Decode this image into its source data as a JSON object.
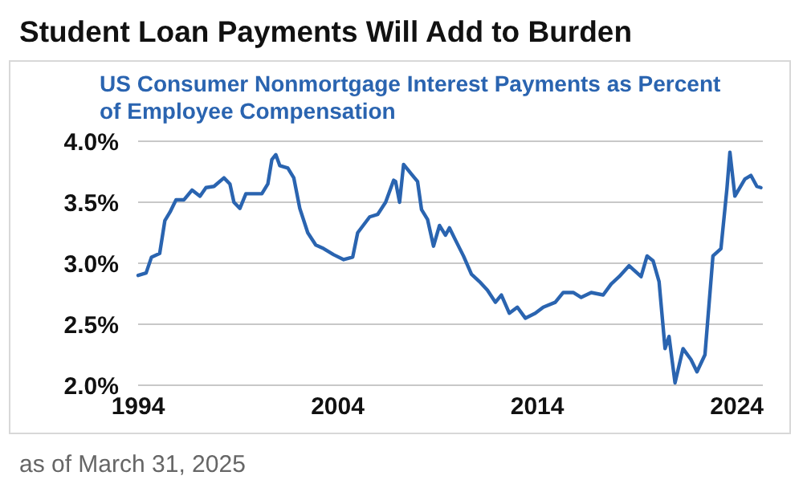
{
  "chart_data": {
    "type": "line",
    "title": "Student Loan Payments Will Add to Burden",
    "subtitle": "US Consumer Nonmortgage Interest Payments as Percent of Employee Compensation",
    "annotations": [
      "as of March 31, 2025"
    ],
    "x": [
      1994.0,
      1994.4,
      1994.67,
      1995.08,
      1995.34,
      1995.6,
      1995.9,
      1996.3,
      1996.7,
      1997.1,
      1997.4,
      1997.8,
      1998.3,
      1998.6,
      1998.8,
      1999.1,
      1999.4,
      2000.2,
      2000.5,
      2000.7,
      2000.9,
      2001.1,
      2001.5,
      2001.8,
      2002.1,
      2002.5,
      2002.9,
      2003.3,
      2003.8,
      2004.3,
      2004.75,
      2005.0,
      2005.6,
      2006.0,
      2006.4,
      2006.8,
      2006.9,
      2007.1,
      2007.3,
      2007.7,
      2008.0,
      2008.2,
      2008.5,
      2008.8,
      2009.1,
      2009.4,
      2009.6,
      2009.9,
      2010.3,
      2010.7,
      2011.1,
      2011.5,
      2011.9,
      2012.2,
      2012.6,
      2013.0,
      2013.4,
      2013.9,
      2014.3,
      2014.9,
      2015.3,
      2015.8,
      2016.2,
      2016.7,
      2017.3,
      2017.7,
      2018.1,
      2018.6,
      2019.2,
      2019.5,
      2019.8,
      2020.1,
      2020.4,
      2020.6,
      2020.9,
      2021.3,
      2021.7,
      2022.0,
      2022.4,
      2022.8,
      2023.2,
      2023.5,
      2023.65,
      2023.9,
      2024.4,
      2024.7,
      2025.0,
      2025.2
    ],
    "series": [
      {
        "color": "#2a64b0",
        "values": [
          2.9,
          2.92,
          3.05,
          3.08,
          3.35,
          3.42,
          3.52,
          3.52,
          3.6,
          3.55,
          3.62,
          3.63,
          3.7,
          3.65,
          3.5,
          3.45,
          3.57,
          3.57,
          3.65,
          3.85,
          3.89,
          3.8,
          3.78,
          3.7,
          3.45,
          3.25,
          3.15,
          3.12,
          3.07,
          3.03,
          3.05,
          3.25,
          3.38,
          3.4,
          3.5,
          3.68,
          3.67,
          3.5,
          3.81,
          3.73,
          3.67,
          3.44,
          3.36,
          3.14,
          3.31,
          3.23,
          3.29,
          3.19,
          3.06,
          2.91,
          2.85,
          2.78,
          2.68,
          2.74,
          2.59,
          2.64,
          2.55,
          2.59,
          2.64,
          2.68,
          2.76,
          2.76,
          2.72,
          2.76,
          2.74,
          2.83,
          2.89,
          2.98,
          2.89,
          3.06,
          3.02,
          2.85,
          2.3,
          2.4,
          2.02,
          2.3,
          2.21,
          2.11,
          2.25,
          3.06,
          3.12,
          3.61,
          3.91,
          3.55,
          3.69,
          3.72,
          3.63,
          3.62
        ]
      }
    ],
    "xlim": [
      1994,
      2025.3
    ],
    "xticks": [
      1994,
      2004,
      2014,
      2024
    ],
    "ylim": [
      2,
      4
    ],
    "yticks": [
      {
        "value": 2,
        "label": "2.0%"
      },
      {
        "value": 2.5,
        "label": "2.5%"
      },
      {
        "value": 3,
        "label": "3.0%"
      },
      {
        "value": 3.5,
        "label": "3.5%"
      },
      {
        "value": 4,
        "label": "4.0%"
      }
    ],
    "grid": "y",
    "marker": "none",
    "line_style": "solid"
  }
}
